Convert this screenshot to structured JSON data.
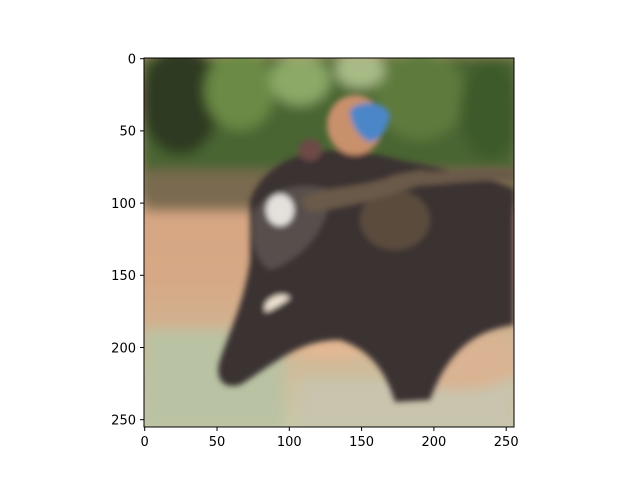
{
  "figure": {
    "image_description_icon": "elephant-photo",
    "axes": {
      "x_ticks": [
        {
          "value": 0,
          "label": "0"
        },
        {
          "value": 50,
          "label": "50"
        },
        {
          "value": 100,
          "label": "100"
        },
        {
          "value": 150,
          "label": "150"
        },
        {
          "value": 200,
          "label": "200"
        },
        {
          "value": 250,
          "label": "250"
        }
      ],
      "y_ticks": [
        {
          "value": 0,
          "label": "0"
        },
        {
          "value": 50,
          "label": "50"
        },
        {
          "value": 100,
          "label": "100"
        },
        {
          "value": 150,
          "label": "150"
        },
        {
          "value": 200,
          "label": "200"
        },
        {
          "value": 250,
          "label": "250"
        }
      ],
      "x_range": [
        0,
        256
      ],
      "y_range": [
        0,
        256
      ],
      "y_inverted": true
    },
    "colors": {
      "foliage": "#4f6b35",
      "sky_bright": "#a8b88a",
      "sand": "#d8a27e",
      "water": "#b9c2a3",
      "elephant": "#3a3332",
      "blue_garment": "#4b86c8"
    }
  }
}
